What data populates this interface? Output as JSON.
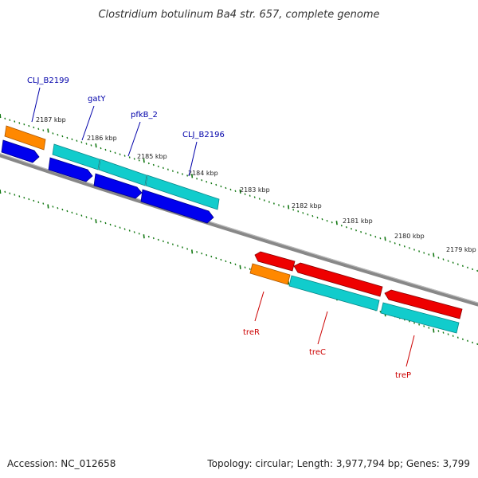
{
  "title": "Clostridium botulinum Ba4 str. 657, complete genome",
  "footer": {
    "accession": "Accession: NC_012658",
    "topology": "Topology: circular; Length: 3,977,794 bp; Genes: 3,799"
  },
  "colors": {
    "forward_label": "#0000aa",
    "reverse_label": "#cc0000",
    "tick": "#117711",
    "backbone": "#888888",
    "cds_blue": "#0000ee",
    "cds_cyan": "#11cccc",
    "cds_orange": "#ff8800",
    "cds_red": "#ee0000"
  },
  "ticks": [
    "2187 kbp",
    "2186 kbp",
    "2185 kbp",
    "2184 kbp",
    "2183 kbp",
    "2182 kbp",
    "2181 kbp",
    "2180 kbp",
    "2179 kbp"
  ],
  "forward_genes": [
    "CLJ_B2199",
    "gatY",
    "pfkB_2",
    "CLJ_B2196"
  ],
  "reverse_genes": [
    "treR",
    "treC",
    "treP"
  ]
}
